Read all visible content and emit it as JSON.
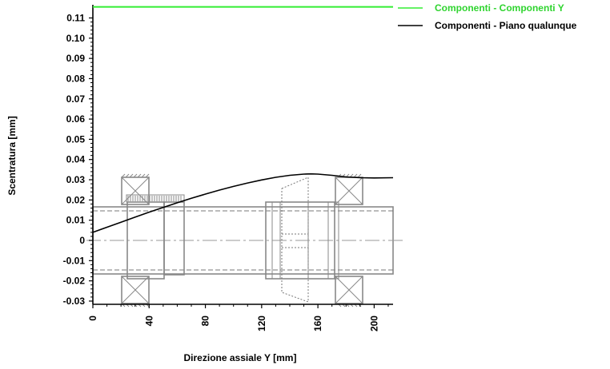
{
  "chart_data": {
    "type": "line",
    "xlabel": "Direzione assiale Y [mm]",
    "ylabel": "Scentratura [mm]",
    "xlim": [
      0,
      215
    ],
    "ylim": [
      -0.03,
      0.115
    ],
    "x_ticks": [
      0,
      40,
      80,
      120,
      160,
      200
    ],
    "y_ticks": [
      0.11,
      0.1,
      0.09,
      0.08,
      0.07,
      0.06,
      0.05,
      0.04,
      0.03,
      0.02,
      0.01,
      0,
      -0.01,
      -0.02,
      -0.03
    ],
    "y_tick_labels": [
      "0.11",
      "0.10",
      "0.09",
      "0.08",
      "0.07",
      "0.06",
      "0.05",
      "0.04",
      "0.03",
      "0.02",
      "0.01",
      "0",
      "-0.01",
      "-0.02",
      "-0.03"
    ],
    "legend_position": "top-right",
    "grid": false,
    "series": [
      {
        "name": "Componenti - Componenti Y",
        "color": "#33ee33",
        "x": [
          0,
          215
        ],
        "y": [
          0.1155,
          0.1155
        ]
      },
      {
        "name": "Componenti - Piano qualunque",
        "color": "#000000",
        "x": [
          0,
          10,
          20,
          30,
          40,
          50,
          60,
          70,
          80,
          90,
          100,
          110,
          120,
          130,
          140,
          150,
          155,
          160,
          170,
          180,
          190,
          200,
          215
        ],
        "y": [
          0.004,
          0.0065,
          0.009,
          0.0115,
          0.014,
          0.0163,
          0.0186,
          0.0208,
          0.0229,
          0.0249,
          0.0267,
          0.0284,
          0.0299,
          0.0312,
          0.0322,
          0.0328,
          0.0329,
          0.0328,
          0.0322,
          0.0314,
          0.031,
          0.0309,
          0.031
        ]
      }
    ]
  }
}
